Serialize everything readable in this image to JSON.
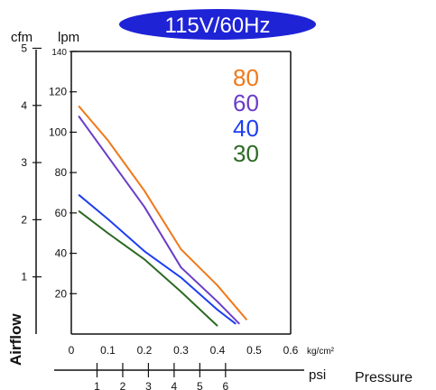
{
  "badge": {
    "text": "115V/60Hz",
    "color": "#1f23d6"
  },
  "chart_data": {
    "type": "line",
    "x": {
      "unit_label": "kg/cm²",
      "ticks": [
        "0",
        "0.1",
        "0.2",
        "0.3",
        "0.4",
        "0.5",
        "0.6"
      ],
      "range": [
        0,
        0.6
      ]
    },
    "x_secondary": {
      "unit_label": "psi",
      "title": "Pressure",
      "ticks": [
        "1",
        "2",
        "3",
        "4",
        "5",
        "6"
      ]
    },
    "y": {
      "unit_label": "lpm",
      "ticks": [
        "20",
        "40",
        "60",
        "80",
        "100",
        "120",
        "140"
      ],
      "range": [
        0,
        140
      ]
    },
    "y_secondary": {
      "unit_label": "cfm",
      "title": "Airflow",
      "ticks": [
        "1",
        "2",
        "3",
        "4",
        "5"
      ]
    },
    "series": [
      {
        "name": "80",
        "color": "#f07818",
        "points": [
          [
            0.02,
            113
          ],
          [
            0.1,
            96
          ],
          [
            0.2,
            71
          ],
          [
            0.3,
            42
          ],
          [
            0.4,
            24
          ],
          [
            0.48,
            7
          ]
        ]
      },
      {
        "name": "60",
        "color": "#6a3dc7",
        "points": [
          [
            0.02,
            108
          ],
          [
            0.1,
            88
          ],
          [
            0.2,
            63
          ],
          [
            0.3,
            33
          ],
          [
            0.4,
            16
          ],
          [
            0.46,
            5
          ]
        ]
      },
      {
        "name": "40",
        "color": "#1e3ff0",
        "points": [
          [
            0.02,
            69
          ],
          [
            0.1,
            57
          ],
          [
            0.2,
            41
          ],
          [
            0.3,
            28
          ],
          [
            0.4,
            12
          ],
          [
            0.45,
            5
          ]
        ]
      },
      {
        "name": "30",
        "color": "#2d6a24",
        "points": [
          [
            0.02,
            61
          ],
          [
            0.1,
            50
          ],
          [
            0.2,
            37
          ],
          [
            0.3,
            21
          ],
          [
            0.4,
            4
          ]
        ]
      }
    ]
  }
}
